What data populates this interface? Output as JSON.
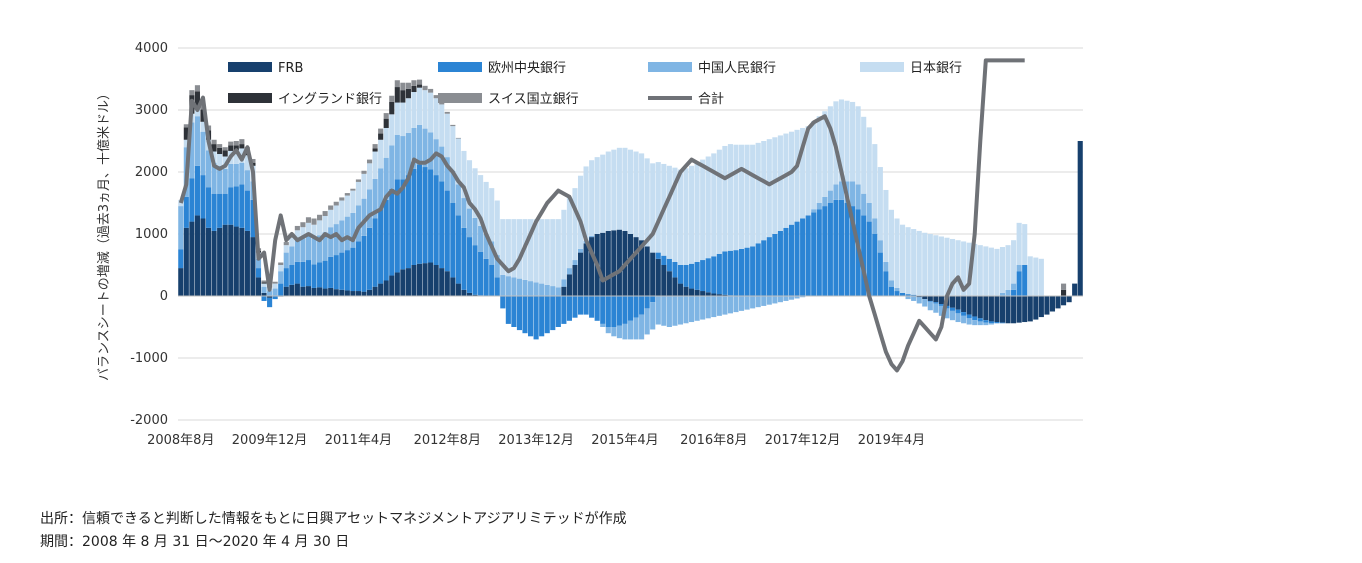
{
  "chart_data": {
    "type": "bar",
    "subtype": "stacked-bar-with-line",
    "ylabel": "バランスシートの増減（過去3ヵ月、十億米ドル）",
    "ylim": [
      -2000,
      4000
    ],
    "yticks": [
      4000,
      3000,
      2000,
      1000,
      0,
      -1000,
      -2000
    ],
    "xtick_labels": [
      "2008年8月",
      "2009年12月",
      "2011年4月",
      "2012年8月",
      "2013年12月",
      "2015年4月",
      "2016年8月",
      "2017年12月",
      "2019年4月"
    ],
    "start": "2008-08",
    "end": "2020-04",
    "grid": true,
    "legend_position": "top",
    "legend": [
      {
        "name": "FRB",
        "color": "#17406d"
      },
      {
        "name": "欧州中央銀行",
        "color": "#2b84d4"
      },
      {
        "name": "中国人民銀行",
        "color": "#7fb5e4"
      },
      {
        "name": "日本銀行",
        "color": "#c5ddf1"
      },
      {
        "name": "イングランド銀行",
        "color": "#2e3238"
      },
      {
        "name": "スイス国立銀行",
        "color": "#8a8d92"
      },
      {
        "name": "合計",
        "color": "#6f7277"
      }
    ],
    "series": [
      {
        "name": "FRB",
        "values": [
          450,
          1100,
          1200,
          1300,
          1250,
          1100,
          1050,
          1100,
          1150,
          1150,
          1120,
          1100,
          1050,
          950,
          300,
          50,
          -30,
          0,
          -10,
          150,
          180,
          200,
          150,
          160,
          130,
          140,
          120,
          130,
          110,
          100,
          90,
          80,
          80,
          70,
          100,
          150,
          200,
          250,
          330,
          380,
          430,
          450,
          500,
          520,
          530,
          540,
          500,
          450,
          400,
          300,
          200,
          100,
          50,
          20,
          10,
          0,
          0,
          0,
          0,
          0,
          0,
          0,
          0,
          0,
          0,
          0,
          0,
          0,
          0,
          150,
          350,
          500,
          700,
          850,
          950,
          1000,
          1020,
          1050,
          1060,
          1070,
          1050,
          1000,
          950,
          900,
          800,
          700,
          600,
          500,
          400,
          300,
          200,
          150,
          120,
          100,
          80,
          60,
          40,
          30,
          20,
          10,
          0,
          0,
          0,
          0,
          0,
          0,
          0,
          0,
          0,
          0,
          0,
          0,
          0,
          0,
          0,
          0,
          0,
          0,
          0,
          0,
          0,
          0,
          0,
          0,
          0,
          0,
          0,
          0,
          0,
          0,
          0,
          0,
          0,
          -20,
          -50,
          -80,
          -100,
          -130,
          -160,
          -190,
          -220,
          -260,
          -300,
          -330,
          -360,
          -390,
          -410,
          -420,
          -430,
          -440,
          -440,
          -430,
          -420,
          -410,
          -380,
          -340,
          -300,
          -250,
          -200,
          -150,
          -100,
          200,
          2500
        ]
      },
      {
        "name": "欧州中央銀行",
        "values": [
          300,
          500,
          700,
          800,
          700,
          650,
          600,
          550,
          500,
          600,
          650,
          700,
          650,
          600,
          150,
          -80,
          -150,
          -50,
          200,
          300,
          320,
          350,
          400,
          420,
          380,
          400,
          450,
          500,
          550,
          600,
          650,
          700,
          800,
          900,
          1000,
          1100,
          1200,
          1300,
          1400,
          1500,
          1450,
          1500,
          1550,
          1600,
          1550,
          1500,
          1450,
          1400,
          1300,
          1200,
          1100,
          1000,
          900,
          800,
          700,
          600,
          500,
          300,
          -200,
          -450,
          -500,
          -550,
          -600,
          -650,
          -700,
          -650,
          -600,
          -550,
          -500,
          -450,
          -400,
          -350,
          -300,
          -300,
          -350,
          -400,
          -450,
          -500,
          -500,
          -480,
          -450,
          -400,
          -350,
          -300,
          -200,
          -100,
          100,
          150,
          200,
          250,
          300,
          350,
          400,
          450,
          500,
          550,
          600,
          650,
          700,
          720,
          740,
          760,
          780,
          800,
          850,
          900,
          950,
          1000,
          1050,
          1100,
          1150,
          1200,
          1250,
          1300,
          1350,
          1400,
          1450,
          1500,
          1550,
          1550,
          1500,
          1450,
          1400,
          1300,
          1200,
          1000,
          700,
          400,
          150,
          80,
          50,
          30,
          20,
          10,
          0,
          -10,
          -20,
          -30,
          -40,
          -50,
          -60,
          -60,
          -60,
          -60,
          -50,
          -40,
          -30,
          -20,
          -10,
          0,
          100,
          400,
          500
        ]
      },
      {
        "name": "中国人民銀行",
        "values": [
          700,
          800,
          900,
          800,
          700,
          600,
          500,
          450,
          400,
          380,
          360,
          350,
          330,
          300,
          150,
          100,
          80,
          120,
          200,
          250,
          300,
          350,
          380,
          400,
          420,
          440,
          460,
          480,
          500,
          520,
          540,
          560,
          580,
          600,
          620,
          640,
          660,
          680,
          700,
          720,
          700,
          680,
          660,
          640,
          620,
          600,
          580,
          560,
          540,
          520,
          500,
          480,
          460,
          440,
          420,
          400,
          380,
          360,
          340,
          320,
          300,
          280,
          260,
          240,
          220,
          200,
          180,
          160,
          140,
          120,
          100,
          80,
          60,
          40,
          20,
          0,
          -50,
          -100,
          -150,
          -200,
          -250,
          -300,
          -350,
          -400,
          -420,
          -440,
          -460,
          -480,
          -500,
          -480,
          -460,
          -440,
          -420,
          -400,
          -380,
          -360,
          -340,
          -320,
          -300,
          -280,
          -260,
          -240,
          -220,
          -200,
          -180,
          -160,
          -140,
          -120,
          -100,
          -80,
          -60,
          -40,
          -20,
          0,
          50,
          100,
          150,
          200,
          250,
          300,
          350,
          400,
          400,
          350,
          300,
          250,
          200,
          150,
          100,
          50,
          0,
          -50,
          -80,
          -100,
          -120,
          -140,
          -150,
          -160,
          -160,
          -150,
          -140,
          -120,
          -100,
          -80,
          -60,
          -40,
          -20,
          0,
          50,
          100,
          100,
          100
        ]
      },
      {
        "name": "日本銀行",
        "values": [
          100,
          120,
          140,
          150,
          160,
          170,
          180,
          190,
          200,
          210,
          220,
          230,
          240,
          250,
          100,
          50,
          60,
          80,
          100,
          120,
          140,
          160,
          180,
          200,
          220,
          240,
          260,
          280,
          300,
          320,
          340,
          360,
          380,
          400,
          420,
          440,
          460,
          480,
          500,
          520,
          540,
          560,
          580,
          600,
          620,
          640,
          660,
          680,
          700,
          720,
          740,
          760,
          780,
          800,
          820,
          840,
          860,
          880,
          900,
          920,
          940,
          960,
          980,
          1000,
          1020,
          1040,
          1060,
          1080,
          1100,
          1120,
          1140,
          1160,
          1180,
          1200,
          1220,
          1240,
          1260,
          1280,
          1300,
          1320,
          1340,
          1360,
          1380,
          1400,
          1420,
          1440,
          1460,
          1480,
          1500,
          1520,
          1540,
          1560,
          1580,
          1600,
          1620,
          1640,
          1660,
          1680,
          1700,
          1720,
          1700,
          1680,
          1660,
          1640,
          1620,
          1600,
          1580,
          1560,
          1540,
          1520,
          1500,
          1480,
          1460,
          1440,
          1420,
          1400,
          1380,
          1360,
          1340,
          1320,
          1300,
          1280,
          1260,
          1240,
          1220,
          1200,
          1180,
          1160,
          1140,
          1120,
          1100,
          1080,
          1060,
          1040,
          1020,
          1000,
          980,
          960,
          940,
          920,
          900,
          880,
          860,
          840,
          820,
          800,
          780,
          760,
          740,
          720,
          700,
          680,
          660,
          640,
          620,
          600
        ]
      },
      {
        "name": "イングランド銀行",
        "values": [
          0,
          200,
          300,
          250,
          200,
          150,
          120,
          100,
          100,
          90,
          80,
          70,
          60,
          50,
          30,
          20,
          10,
          0,
          0,
          0,
          0,
          0,
          0,
          0,
          0,
          0,
          0,
          0,
          0,
          0,
          0,
          0,
          0,
          0,
          0,
          50,
          100,
          150,
          200,
          250,
          200,
          150,
          100,
          50,
          0,
          0,
          0,
          0,
          0,
          0,
          0,
          0,
          0,
          0,
          0,
          0,
          0,
          0,
          0,
          0,
          0,
          0,
          0,
          0,
          0,
          0,
          0,
          0,
          0,
          0,
          0,
          0,
          0,
          0,
          0,
          0,
          0,
          0,
          0,
          0,
          0,
          0,
          0,
          0,
          0,
          0,
          0,
          0,
          0,
          0,
          0,
          0,
          0,
          0,
          0,
          0,
          0,
          0,
          0,
          0,
          0,
          0,
          0,
          0,
          0,
          0,
          0,
          0,
          0,
          0,
          0,
          0,
          0,
          0,
          0,
          0,
          0,
          0,
          0,
          0,
          0,
          0,
          0,
          0,
          0,
          0,
          0,
          0,
          0,
          0,
          0,
          0,
          0,
          0,
          0,
          0,
          0,
          0,
          0,
          0,
          0,
          0,
          0,
          0,
          0,
          0,
          0,
          0,
          0,
          0,
          0,
          0,
          0,
          0,
          0,
          0,
          0,
          0,
          0,
          100
        ]
      },
      {
        "name": "スイス国立銀行",
        "values": [
          0,
          50,
          80,
          100,
          90,
          80,
          70,
          60,
          50,
          60,
          70,
          80,
          70,
          60,
          40,
          30,
          20,
          30,
          40,
          50,
          60,
          70,
          80,
          90,
          100,
          90,
          80,
          70,
          60,
          50,
          40,
          30,
          40,
          50,
          60,
          70,
          80,
          90,
          100,
          110,
          120,
          100,
          90,
          80,
          70,
          60,
          50,
          40,
          30,
          20,
          10,
          0,
          0,
          0,
          0,
          0,
          0,
          0,
          0,
          0,
          0,
          0,
          0,
          0,
          0,
          0,
          0,
          0,
          0,
          0,
          0,
          0,
          0,
          0,
          0,
          0,
          0,
          0,
          0,
          0,
          0,
          0,
          0,
          0,
          0,
          0,
          0,
          0,
          0,
          0,
          0,
          0,
          0,
          0,
          0,
          0,
          0,
          0,
          0,
          0,
          0,
          0,
          0,
          0,
          0,
          0,
          0,
          0,
          0,
          0,
          0,
          0,
          0,
          0,
          0,
          0,
          0,
          0,
          0,
          0,
          0,
          0,
          0,
          0,
          0,
          0,
          0,
          0,
          0,
          0,
          0,
          0,
          0,
          0,
          0,
          0,
          0,
          0,
          0,
          0,
          0,
          0,
          0,
          0,
          0,
          0,
          0,
          0,
          0,
          0,
          0,
          0,
          0,
          0,
          0,
          0,
          0,
          0,
          0,
          100
        ]
      },
      {
        "name": "合計",
        "values": [
          1500,
          1800,
          3150,
          3000,
          3200,
          2500,
          2100,
          2050,
          2100,
          2250,
          2350,
          2200,
          2400,
          2000,
          600,
          700,
          100,
          900,
          1300,
          900,
          1000,
          900,
          950,
          1000,
          950,
          900,
          1000,
          950,
          1000,
          900,
          950,
          900,
          1100,
          1200,
          1300,
          1350,
          1400,
          1600,
          1700,
          1650,
          1750,
          1900,
          2200,
          2150,
          2150,
          2200,
          2300,
          2250,
          2100,
          2000,
          1850,
          1750,
          1500,
          1400,
          1250,
          1000,
          800,
          600,
          500,
          400,
          450,
          600,
          800,
          1000,
          1200,
          1350,
          1500,
          1600,
          1700,
          1650,
          1600,
          1400,
          1200,
          900,
          700,
          500,
          250,
          300,
          350,
          400,
          500,
          600,
          700,
          800,
          900,
          1000,
          1200,
          1400,
          1600,
          1800,
          2000,
          2100,
          2200,
          2150,
          2100,
          2050,
          2000,
          1950,
          1900,
          1950,
          2000,
          2050,
          2000,
          1950,
          1900,
          1850,
          1800,
          1850,
          1900,
          1950,
          2000,
          2100,
          2400,
          2700,
          2800,
          2850,
          2900,
          2700,
          2400,
          2000,
          1600,
          1200,
          800,
          400,
          0,
          -300,
          -600,
          -900,
          -1100,
          -1200,
          -1050,
          -800,
          -600,
          -400,
          -500,
          -600,
          -700,
          -500,
          0,
          200,
          300,
          100,
          200,
          1000,
          2500,
          3800,
          3800,
          3800,
          3800,
          3800,
          3800,
          3800,
          3800
        ]
      }
    ]
  },
  "notes": {
    "source": "出所：信頼できると判断した情報をもとに日興アセットマネジメントアジアリミテッドが作成",
    "period": "期間：2008 年 8 月 31 日～2020 年 4 月 30 日"
  }
}
